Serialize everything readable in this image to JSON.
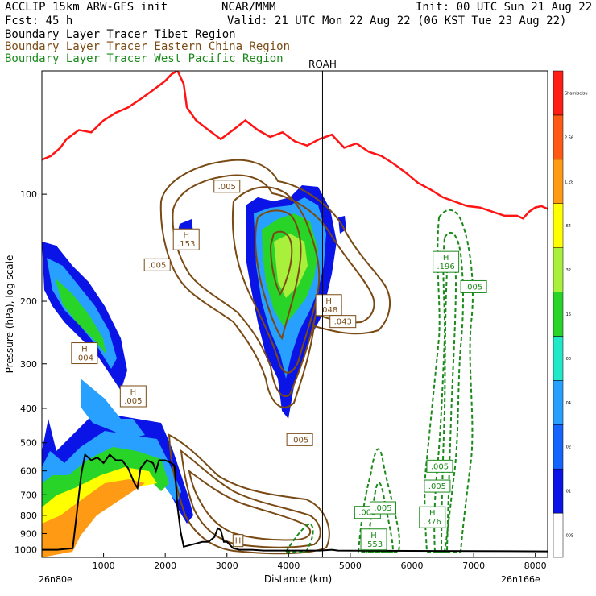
{
  "header": {
    "title": "ACCLIP 15km ARW-GFS init",
    "source": "NCAR/MMM",
    "init": "Init: 00 UTC Sun 21 Aug 22",
    "fcst": "Fcst:   45 h",
    "valid": "Valid: 21 UTC Mon 22 Aug 22 (06 KST Tue 23 Aug 22)",
    "legend": [
      {
        "label": "Boundary Layer Tracer  Tibet Region",
        "color": "#000000"
      },
      {
        "label": "Boundary Layer Tracer  Eastern China Region",
        "color": "#7a4a14"
      },
      {
        "label": "Boundary Layer Tracer  West Pacific Region",
        "color": "#1a8a1a"
      }
    ]
  },
  "chart_data": {
    "type": "area",
    "xlabel": "Distance (km)",
    "ylabel": "Pressure (hPa), log scale",
    "xlim": [
      0,
      8200
    ],
    "ylim": [
      1050,
      45
    ],
    "y_scale": "log",
    "x_ticks": [
      1000,
      2000,
      3000,
      4000,
      5000,
      6000,
      7000,
      8000
    ],
    "y_ticks": [
      100,
      200,
      300,
      400,
      500,
      600,
      700,
      800,
      900,
      1000
    ],
    "x_endpoints": {
      "left": "26n80e",
      "right": "26n166e"
    },
    "vertical_marker": {
      "label": "ROAH",
      "x": 4550
    },
    "colorbar": {
      "levels": [
        ".005",
        ".01",
        ".02",
        ".04",
        ".08",
        ".16",
        ".32",
        ".64",
        "1.28",
        "2.56",
        "Shamiselsu"
      ],
      "colors": [
        "#ffffff",
        "#0a14e6",
        "#1464ff",
        "#28a0ff",
        "#20e8c8",
        "#28d428",
        "#a8f03c",
        "#ffff00",
        "#ff9a14",
        "#ff5a14",
        "#ff1e14"
      ]
    },
    "terrain": {
      "color": "#000000",
      "points": [
        [
          0,
          1000
        ],
        [
          250,
          1000
        ],
        [
          500,
          990
        ],
        [
          640,
          610
        ],
        [
          700,
          540
        ],
        [
          800,
          560
        ],
        [
          900,
          550
        ],
        [
          1000,
          570
        ],
        [
          1100,
          540
        ],
        [
          1200,
          560
        ],
        [
          1300,
          560
        ],
        [
          1400,
          590
        ],
        [
          1500,
          650
        ],
        [
          1550,
          670
        ],
        [
          1600,
          590
        ],
        [
          1700,
          560
        ],
        [
          1800,
          570
        ],
        [
          1850,
          600
        ],
        [
          1900,
          560
        ],
        [
          2000,
          560
        ],
        [
          2100,
          570
        ],
        [
          2150,
          580
        ],
        [
          2200,
          760
        ],
        [
          2250,
          890
        ],
        [
          2300,
          980
        ],
        [
          2400,
          970
        ],
        [
          2500,
          960
        ],
        [
          2600,
          950
        ],
        [
          2700,
          950
        ],
        [
          2800,
          920
        ],
        [
          2850,
          870
        ],
        [
          2900,
          880
        ],
        [
          2950,
          950
        ],
        [
          3000,
          950
        ],
        [
          3100,
          990
        ],
        [
          3200,
          1000
        ],
        [
          3400,
          1000
        ],
        [
          3600,
          1005
        ],
        [
          4500,
          1005
        ],
        [
          4700,
          1000
        ],
        [
          4800,
          1005
        ],
        [
          8200,
          1010
        ]
      ]
    },
    "tropopause": {
      "color": "#ff1414",
      "points": [
        [
          0,
          80
        ],
        [
          150,
          78
        ],
        [
          300,
          74
        ],
        [
          400,
          70
        ],
        [
          600,
          66
        ],
        [
          800,
          67
        ],
        [
          1000,
          62
        ],
        [
          1200,
          59
        ],
        [
          1400,
          57
        ],
        [
          1600,
          54
        ],
        [
          1800,
          51
        ],
        [
          2000,
          48
        ],
        [
          2100,
          46
        ],
        [
          2200,
          45
        ],
        [
          2300,
          49
        ],
        [
          2350,
          57
        ],
        [
          2500,
          62
        ],
        [
          2700,
          66
        ],
        [
          2900,
          70
        ],
        [
          3100,
          66
        ],
        [
          3300,
          62
        ],
        [
          3500,
          66
        ],
        [
          3700,
          69
        ],
        [
          3900,
          67
        ],
        [
          4100,
          71
        ],
        [
          4300,
          73
        ],
        [
          4500,
          70
        ],
        [
          4700,
          68
        ],
        [
          4900,
          74
        ],
        [
          5100,
          72
        ],
        [
          5300,
          76
        ],
        [
          5500,
          78
        ],
        [
          5700,
          82
        ],
        [
          5900,
          87
        ],
        [
          6100,
          93
        ],
        [
          6300,
          97
        ],
        [
          6500,
          102
        ],
        [
          6700,
          105
        ],
        [
          6900,
          108
        ],
        [
          7100,
          109
        ],
        [
          7300,
          112
        ],
        [
          7500,
          115
        ],
        [
          7700,
          115
        ],
        [
          7800,
          117
        ],
        [
          7900,
          112
        ],
        [
          8000,
          109
        ],
        [
          8100,
          108
        ],
        [
          8200,
          110
        ]
      ]
    },
    "box_labels": [
      {
        "text": ".005",
        "x": 3000,
        "y": 95,
        "color": "#7a4a14"
      },
      {
        "text": "H\n.153",
        "x": 2340,
        "y": 134,
        "color": "#7a4a14"
      },
      {
        "text": ".005",
        "x": 1870,
        "y": 158,
        "color": "#7a4a14"
      },
      {
        "text": "H\n.048",
        "x": 4650,
        "y": 205,
        "color": "#7a4a14"
      },
      {
        "text": ".043",
        "x": 4880,
        "y": 228,
        "color": "#7a4a14"
      },
      {
        "text": ".005",
        "x": 4180,
        "y": 490,
        "color": "#7a4a14"
      },
      {
        "text": "H\n.004",
        "x": 690,
        "y": 280,
        "color": "#7a4a14"
      },
      {
        "text": "H\n.005",
        "x": 1480,
        "y": 370,
        "color": "#7a4a14"
      },
      {
        "text": "H",
        "x": 3180,
        "y": 942,
        "color": "#7a4a14"
      },
      {
        "text": ".005",
        "x": 5280,
        "y": 785,
        "color": "#1a8a1a"
      },
      {
        "text": ".005",
        "x": 5530,
        "y": 762,
        "color": "#1a8a1a"
      },
      {
        "text": "H\n.553",
        "x": 5380,
        "y": 935,
        "color": "#1a8a1a"
      },
      {
        "text": "H\n.376",
        "x": 6330,
        "y": 810,
        "color": "#1a8a1a"
      },
      {
        "text": ".005",
        "x": 6450,
        "y": 582,
        "color": "#1a8a1a"
      },
      {
        "text": ".005",
        "x": 6410,
        "y": 662,
        "color": "#1a8a1a"
      },
      {
        "text": "H\n.196",
        "x": 6550,
        "y": 155,
        "color": "#1a8a1a"
      },
      {
        "text": ".005",
        "x": 7000,
        "y": 182,
        "color": "#1a8a1a"
      }
    ]
  }
}
